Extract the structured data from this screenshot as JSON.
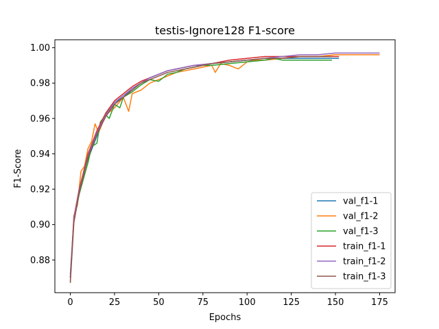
{
  "chart_data": {
    "type": "line",
    "title": "testis-Ignore128 F1-score",
    "xlabel": "Epochs",
    "ylabel": "F1-Score",
    "xlim": [
      -8.75,
      183.75
    ],
    "ylim": [
      0.8615,
      1.0045
    ],
    "xticks": [
      0,
      25,
      50,
      75,
      100,
      125,
      150,
      175
    ],
    "xtick_labels": [
      "0",
      "25",
      "50",
      "75",
      "100",
      "125",
      "150",
      "175"
    ],
    "yticks": [
      0.88,
      0.9,
      0.92,
      0.94,
      0.96,
      0.98,
      1.0
    ],
    "ytick_labels": [
      "0.88",
      "0.90",
      "0.92",
      "0.94",
      "0.96",
      "0.98",
      "1.00"
    ],
    "grid": false,
    "legend_position": "lower right",
    "series": [
      {
        "name": "val_f1-1",
        "color": "#1f77b4",
        "x": [
          0,
          2,
          5,
          8,
          10,
          15,
          20,
          25,
          30,
          35,
          40,
          45,
          50,
          55,
          60,
          65,
          70,
          75,
          80,
          90,
          100,
          110,
          120,
          130,
          140,
          150,
          152
        ],
        "y": [
          0.872,
          0.903,
          0.918,
          0.931,
          0.937,
          0.95,
          0.962,
          0.969,
          0.972,
          0.977,
          0.98,
          0.983,
          0.985,
          0.987,
          0.988,
          0.989,
          0.99,
          0.99,
          0.991,
          0.992,
          0.993,
          0.993,
          0.994,
          0.994,
          0.994,
          0.994,
          0.994
        ]
      },
      {
        "name": "val_f1-2",
        "color": "#ff7f0e",
        "x": [
          0,
          2,
          4,
          6,
          8,
          10,
          12,
          14,
          16,
          20,
          25,
          30,
          33,
          35,
          40,
          45,
          50,
          55,
          60,
          65,
          70,
          75,
          80,
          82,
          85,
          90,
          95,
          100,
          105,
          110,
          120,
          130,
          140,
          150,
          160,
          170,
          175
        ],
        "y": [
          0.87,
          0.905,
          0.911,
          0.93,
          0.933,
          0.943,
          0.947,
          0.957,
          0.952,
          0.962,
          0.966,
          0.972,
          0.964,
          0.974,
          0.976,
          0.98,
          0.982,
          0.984,
          0.986,
          0.987,
          0.988,
          0.989,
          0.99,
          0.986,
          0.991,
          0.99,
          0.988,
          0.992,
          0.993,
          0.993,
          0.994,
          0.995,
          0.995,
          0.996,
          0.996,
          0.996,
          0.996
        ]
      },
      {
        "name": "val_f1-3",
        "color": "#2ca02c",
        "x": [
          0,
          2,
          5,
          8,
          10,
          12,
          15,
          17,
          20,
          22,
          25,
          28,
          30,
          35,
          40,
          45,
          50,
          55,
          60,
          65,
          70,
          75,
          80,
          90,
          100,
          110,
          115,
          120,
          130,
          140,
          148
        ],
        "y": [
          0.87,
          0.902,
          0.917,
          0.928,
          0.935,
          0.944,
          0.946,
          0.958,
          0.962,
          0.96,
          0.968,
          0.966,
          0.972,
          0.975,
          0.979,
          0.982,
          0.981,
          0.985,
          0.986,
          0.988,
          0.989,
          0.99,
          0.99,
          0.991,
          0.992,
          0.993,
          0.994,
          0.993,
          0.993,
          0.993,
          0.993
        ]
      },
      {
        "name": "train_f1-1",
        "color": "#d62728",
        "x": [
          0,
          2,
          5,
          8,
          10,
          15,
          20,
          25,
          30,
          35,
          40,
          45,
          50,
          55,
          60,
          70,
          80,
          90,
          100,
          110,
          120,
          130,
          140,
          150,
          152
        ],
        "y": [
          0.868,
          0.904,
          0.92,
          0.932,
          0.94,
          0.953,
          0.963,
          0.97,
          0.974,
          0.978,
          0.981,
          0.983,
          0.985,
          0.987,
          0.988,
          0.99,
          0.991,
          0.993,
          0.994,
          0.995,
          0.995,
          0.995,
          0.995,
          0.995,
          0.995
        ]
      },
      {
        "name": "train_f1-2",
        "color": "#9467bd",
        "x": [
          0,
          2,
          5,
          8,
          10,
          15,
          20,
          25,
          30,
          35,
          40,
          45,
          50,
          55,
          60,
          70,
          80,
          90,
          100,
          110,
          120,
          130,
          140,
          150,
          160,
          170,
          175
        ],
        "y": [
          0.87,
          0.903,
          0.919,
          0.931,
          0.939,
          0.952,
          0.962,
          0.969,
          0.973,
          0.977,
          0.98,
          0.983,
          0.985,
          0.987,
          0.988,
          0.99,
          0.991,
          0.992,
          0.993,
          0.994,
          0.995,
          0.996,
          0.996,
          0.997,
          0.997,
          0.997,
          0.997
        ]
      },
      {
        "name": "train_f1-3",
        "color": "#8c564b",
        "x": [
          0,
          2,
          5,
          8,
          10,
          15,
          20,
          25,
          30,
          35,
          40,
          45,
          50,
          55,
          60,
          70,
          80,
          90,
          100,
          110,
          120,
          130,
          140,
          148
        ],
        "y": [
          0.867,
          0.901,
          0.918,
          0.93,
          0.938,
          0.951,
          0.961,
          0.968,
          0.972,
          0.976,
          0.98,
          0.982,
          0.984,
          0.986,
          0.987,
          0.989,
          0.991,
          0.992,
          0.993,
          0.994,
          0.994,
          0.995,
          0.995,
          0.995
        ]
      }
    ]
  }
}
